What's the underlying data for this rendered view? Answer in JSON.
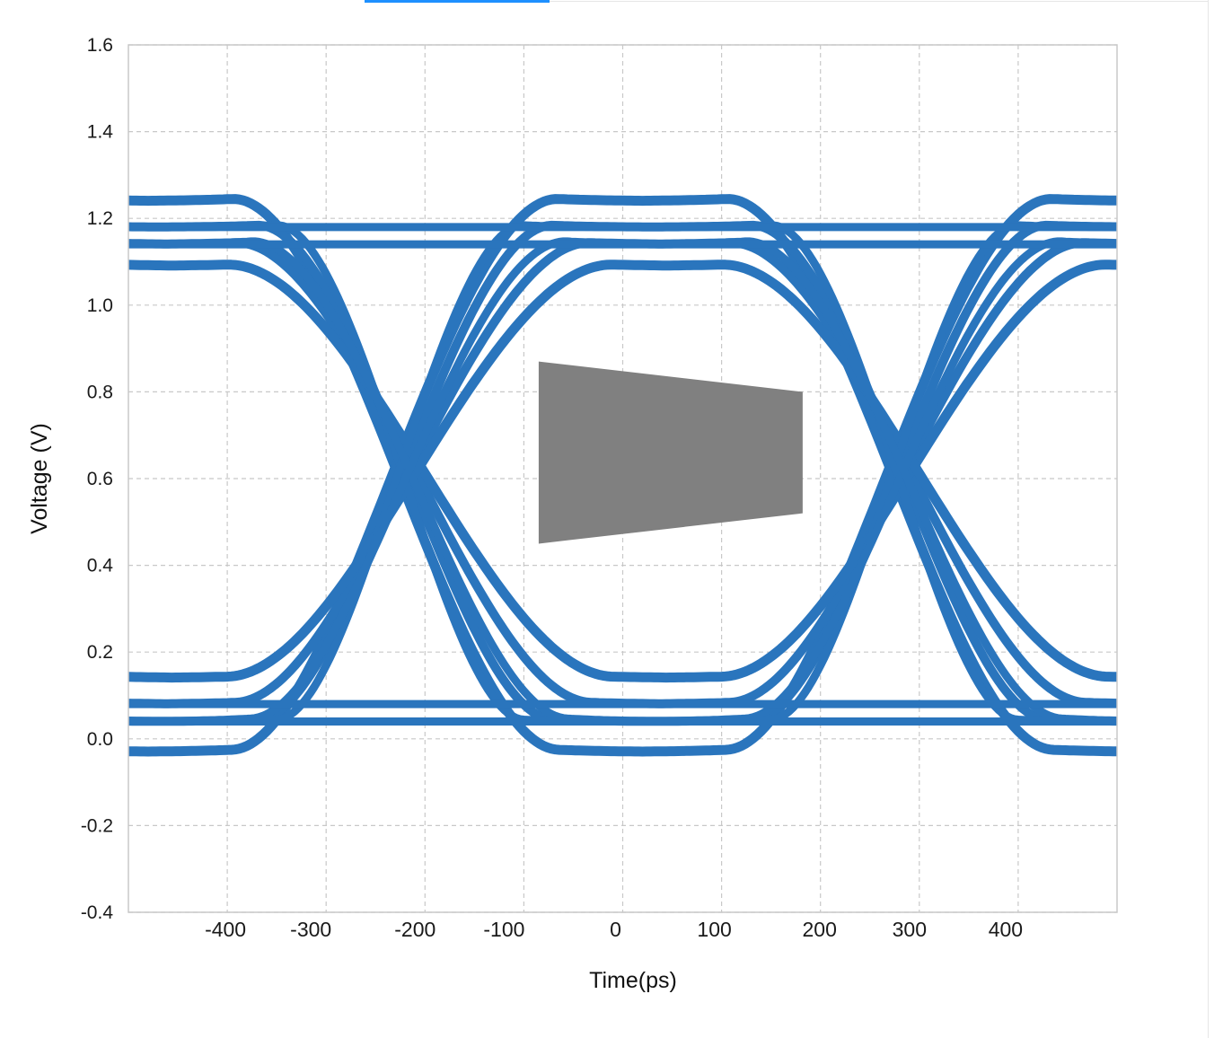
{
  "colors": {
    "trace": "#2a75bd",
    "mask": "#808080",
    "grid": "#c8c8c8",
    "text": "#1a1a1a"
  },
  "chart_data": {
    "type": "eye-diagram",
    "title": "",
    "xlabel": "Time(ps)",
    "ylabel": "Voltage (V)",
    "xlim": [
      -500,
      500
    ],
    "ylim": [
      -0.4,
      1.6
    ],
    "grid": true,
    "x_ticks": [
      -400,
      -300,
      -200,
      -100,
      0,
      100,
      200,
      300,
      400
    ],
    "x_tick_labels": [
      "-400",
      "-300",
      "-200",
      "-100",
      "0",
      "100",
      "200",
      "300",
      "400"
    ],
    "y_ticks": [
      1.6,
      1.4,
      1.2,
      1.0,
      0.8,
      0.6,
      0.4,
      0.2,
      0.0,
      -0.2,
      -0.4
    ],
    "y_tick_labels": [
      "1.6",
      "1.4",
      "1.2",
      "1.0",
      "0.8",
      "0.6",
      "0.4",
      "0.2",
      "0.0",
      "-0.2",
      "-0.4"
    ],
    "unit_interval_ps": 500,
    "crossings_ps": [
      -220,
      280
    ],
    "crossing_voltage_v": 0.64,
    "high_levels_v": [
      1.24,
      1.18,
      1.14,
      1.09
    ],
    "low_levels_v": [
      0.14,
      0.08,
      0.04,
      -0.03
    ],
    "eye_mask": {
      "points": [
        [
          -85,
          0.87
        ],
        [
          182,
          0.8
        ],
        [
          182,
          0.52
        ],
        [
          -85,
          0.45
        ]
      ]
    }
  }
}
